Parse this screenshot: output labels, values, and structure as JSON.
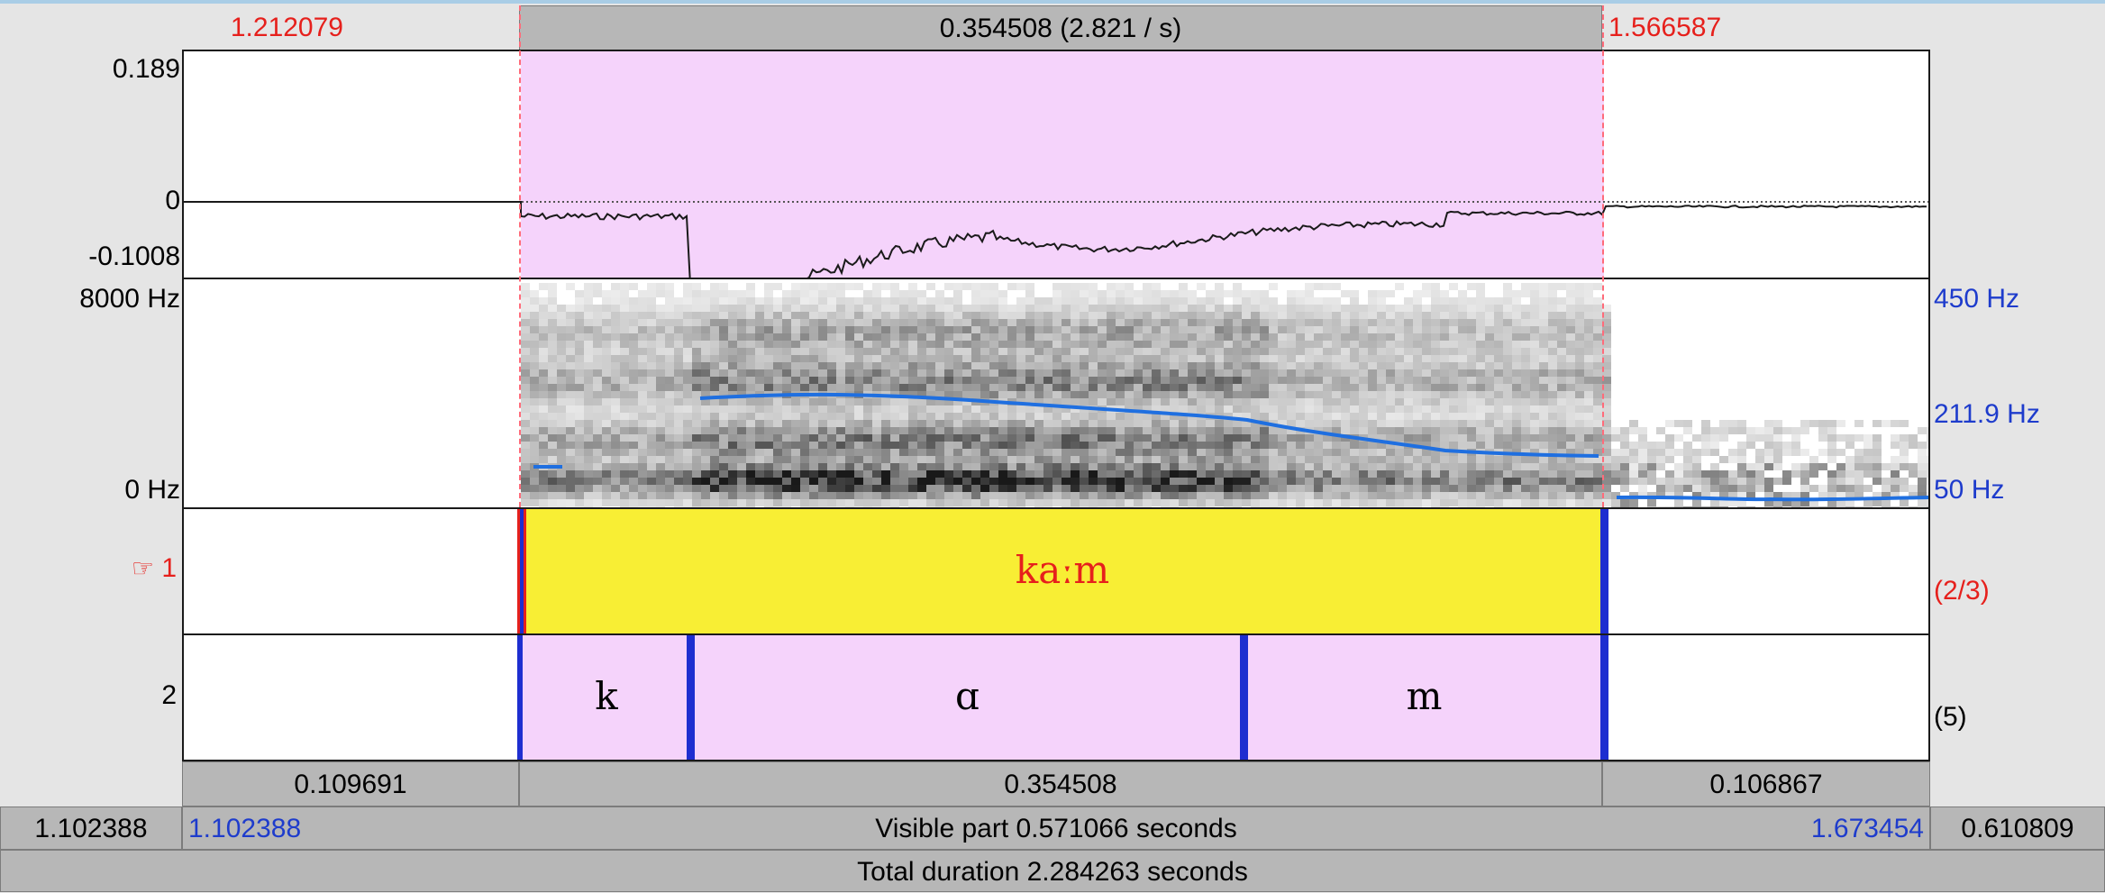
{
  "window": {
    "accent_color": "#a9cde6"
  },
  "selection": {
    "start": "1.212079",
    "end": "1.566587",
    "duration_label": "0.354508 (2.821 / s)"
  },
  "waveform": {
    "y_max": "0.189",
    "y_zero": "0",
    "y_min": "-0.1008"
  },
  "spectrogram": {
    "freq_max": "8000 Hz",
    "freq_min": "0 Hz",
    "pitch_max": "450 Hz",
    "pitch_cursor": "211.9 Hz",
    "pitch_min": "50 Hz",
    "pitch_color": "#1f6fe0"
  },
  "tiers": [
    {
      "number": "1",
      "pointer_icon": "☞",
      "interval_text": "kaːm",
      "count": "(2/3)",
      "color": "#f8ee34"
    },
    {
      "number": "2",
      "segments": [
        "k",
        "ɑ",
        "m"
      ],
      "count": "(5)",
      "color": "#f5d3fb"
    }
  ],
  "duration_bar": {
    "left": "0.109691",
    "middle": "0.354508",
    "right": "0.106867"
  },
  "visible_bar": {
    "left_outside": "1.102388",
    "start": "1.102388",
    "text": "Visible part 0.571066 seconds",
    "end": "1.673454",
    "right_outside": "0.610809"
  },
  "total_bar": {
    "text": "Total duration 2.284263 seconds"
  }
}
